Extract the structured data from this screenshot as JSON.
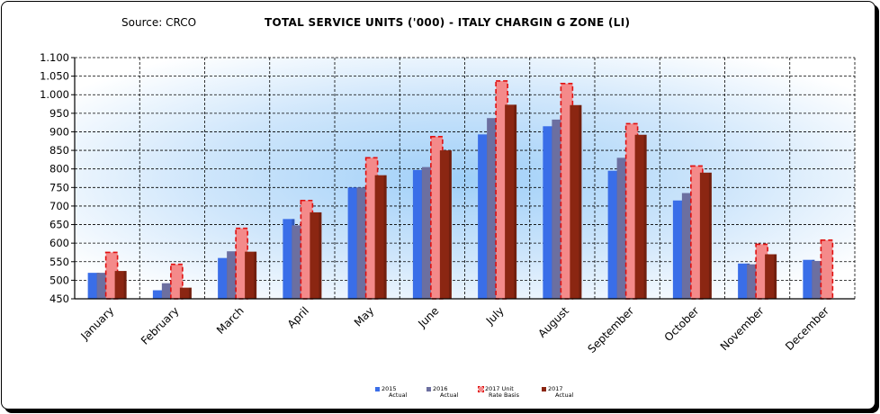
{
  "source": "Source: CRCO",
  "title": "TOTAL SERVICE UNITS ('000) - ITALY CHARGIN G  ZONE (LI)",
  "chart_data": {
    "type": "bar",
    "categories": [
      "January",
      "February",
      "March",
      "April",
      "May",
      "June",
      "July",
      "August",
      "September",
      "October",
      "November",
      "December"
    ],
    "ylim": [
      450,
      1100
    ],
    "yticks": [
      450,
      500,
      550,
      600,
      650,
      700,
      750,
      800,
      850,
      900,
      950,
      1000,
      1050,
      1100
    ],
    "ytick_labels": [
      "450",
      "500",
      "550",
      "600",
      "650",
      "700",
      "750",
      "800",
      "850",
      "900",
      "950",
      "1.000",
      "1.050",
      "1.100"
    ],
    "series": [
      {
        "name": "2015 Actual",
        "legend_lines": [
          "2015",
          "Actual"
        ],
        "color": "#3a6ee8",
        "style": "bar",
        "values": [
          520,
          473,
          560,
          665,
          750,
          797,
          893,
          915,
          795,
          715,
          545,
          555
        ]
      },
      {
        "name": "2016 Actual",
        "legend_lines": [
          "2016",
          "Actual"
        ],
        "color": "#6c6fa0",
        "style": "bar",
        "values": [
          520,
          492,
          578,
          648,
          750,
          805,
          937,
          933,
          830,
          735,
          543,
          552
        ]
      },
      {
        "name": "2017 Unit Rate Basis",
        "legend_lines": [
          "2017 Unit",
          "Rate Basis"
        ],
        "color": "#f48a8a",
        "border": "#e01010",
        "style": "dashed",
        "values": [
          575,
          543,
          640,
          715,
          830,
          887,
          1037,
          1030,
          922,
          808,
          597,
          608
        ]
      },
      {
        "name": "2017 Actual",
        "legend_lines": [
          "2017",
          "Actual"
        ],
        "color": "#8b2612",
        "style": "bar",
        "values": [
          525,
          480,
          577,
          683,
          783,
          850,
          973,
          972,
          892,
          790,
          570,
          450
        ]
      }
    ]
  }
}
